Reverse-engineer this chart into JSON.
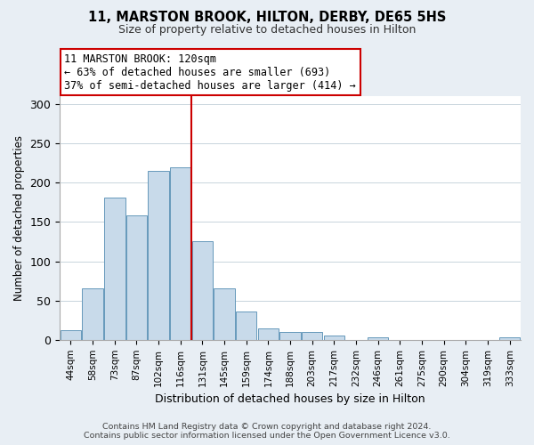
{
  "title": "11, MARSTON BROOK, HILTON, DERBY, DE65 5HS",
  "subtitle": "Size of property relative to detached houses in Hilton",
  "xlabel": "Distribution of detached houses by size in Hilton",
  "ylabel": "Number of detached properties",
  "bar_labels": [
    "44sqm",
    "58sqm",
    "73sqm",
    "87sqm",
    "102sqm",
    "116sqm",
    "131sqm",
    "145sqm",
    "159sqm",
    "174sqm",
    "188sqm",
    "203sqm",
    "217sqm",
    "232sqm",
    "246sqm",
    "261sqm",
    "275sqm",
    "290sqm",
    "304sqm",
    "319sqm",
    "333sqm"
  ],
  "bar_values": [
    12,
    65,
    181,
    158,
    215,
    220,
    125,
    65,
    36,
    14,
    10,
    10,
    5,
    0,
    3,
    0,
    0,
    0,
    0,
    0,
    3
  ],
  "bar_color": "#c8daea",
  "bar_edge_color": "#6699bb",
  "vline_x": 5.5,
  "vline_color": "#cc0000",
  "annotation_line1": "11 MARSTON BROOK: 120sqm",
  "annotation_line2": "← 63% of detached houses are smaller (693)",
  "annotation_line3": "37% of semi-detached houses are larger (414) →",
  "annotation_box_color": "#ffffff",
  "annotation_box_edge": "#cc0000",
  "ylim": [
    0,
    310
  ],
  "yticks": [
    0,
    50,
    100,
    150,
    200,
    250,
    300
  ],
  "footer": "Contains HM Land Registry data © Crown copyright and database right 2024.\nContains public sector information licensed under the Open Government Licence v3.0.",
  "bg_color": "#e8eef4",
  "plot_bg_color": "#ffffff"
}
